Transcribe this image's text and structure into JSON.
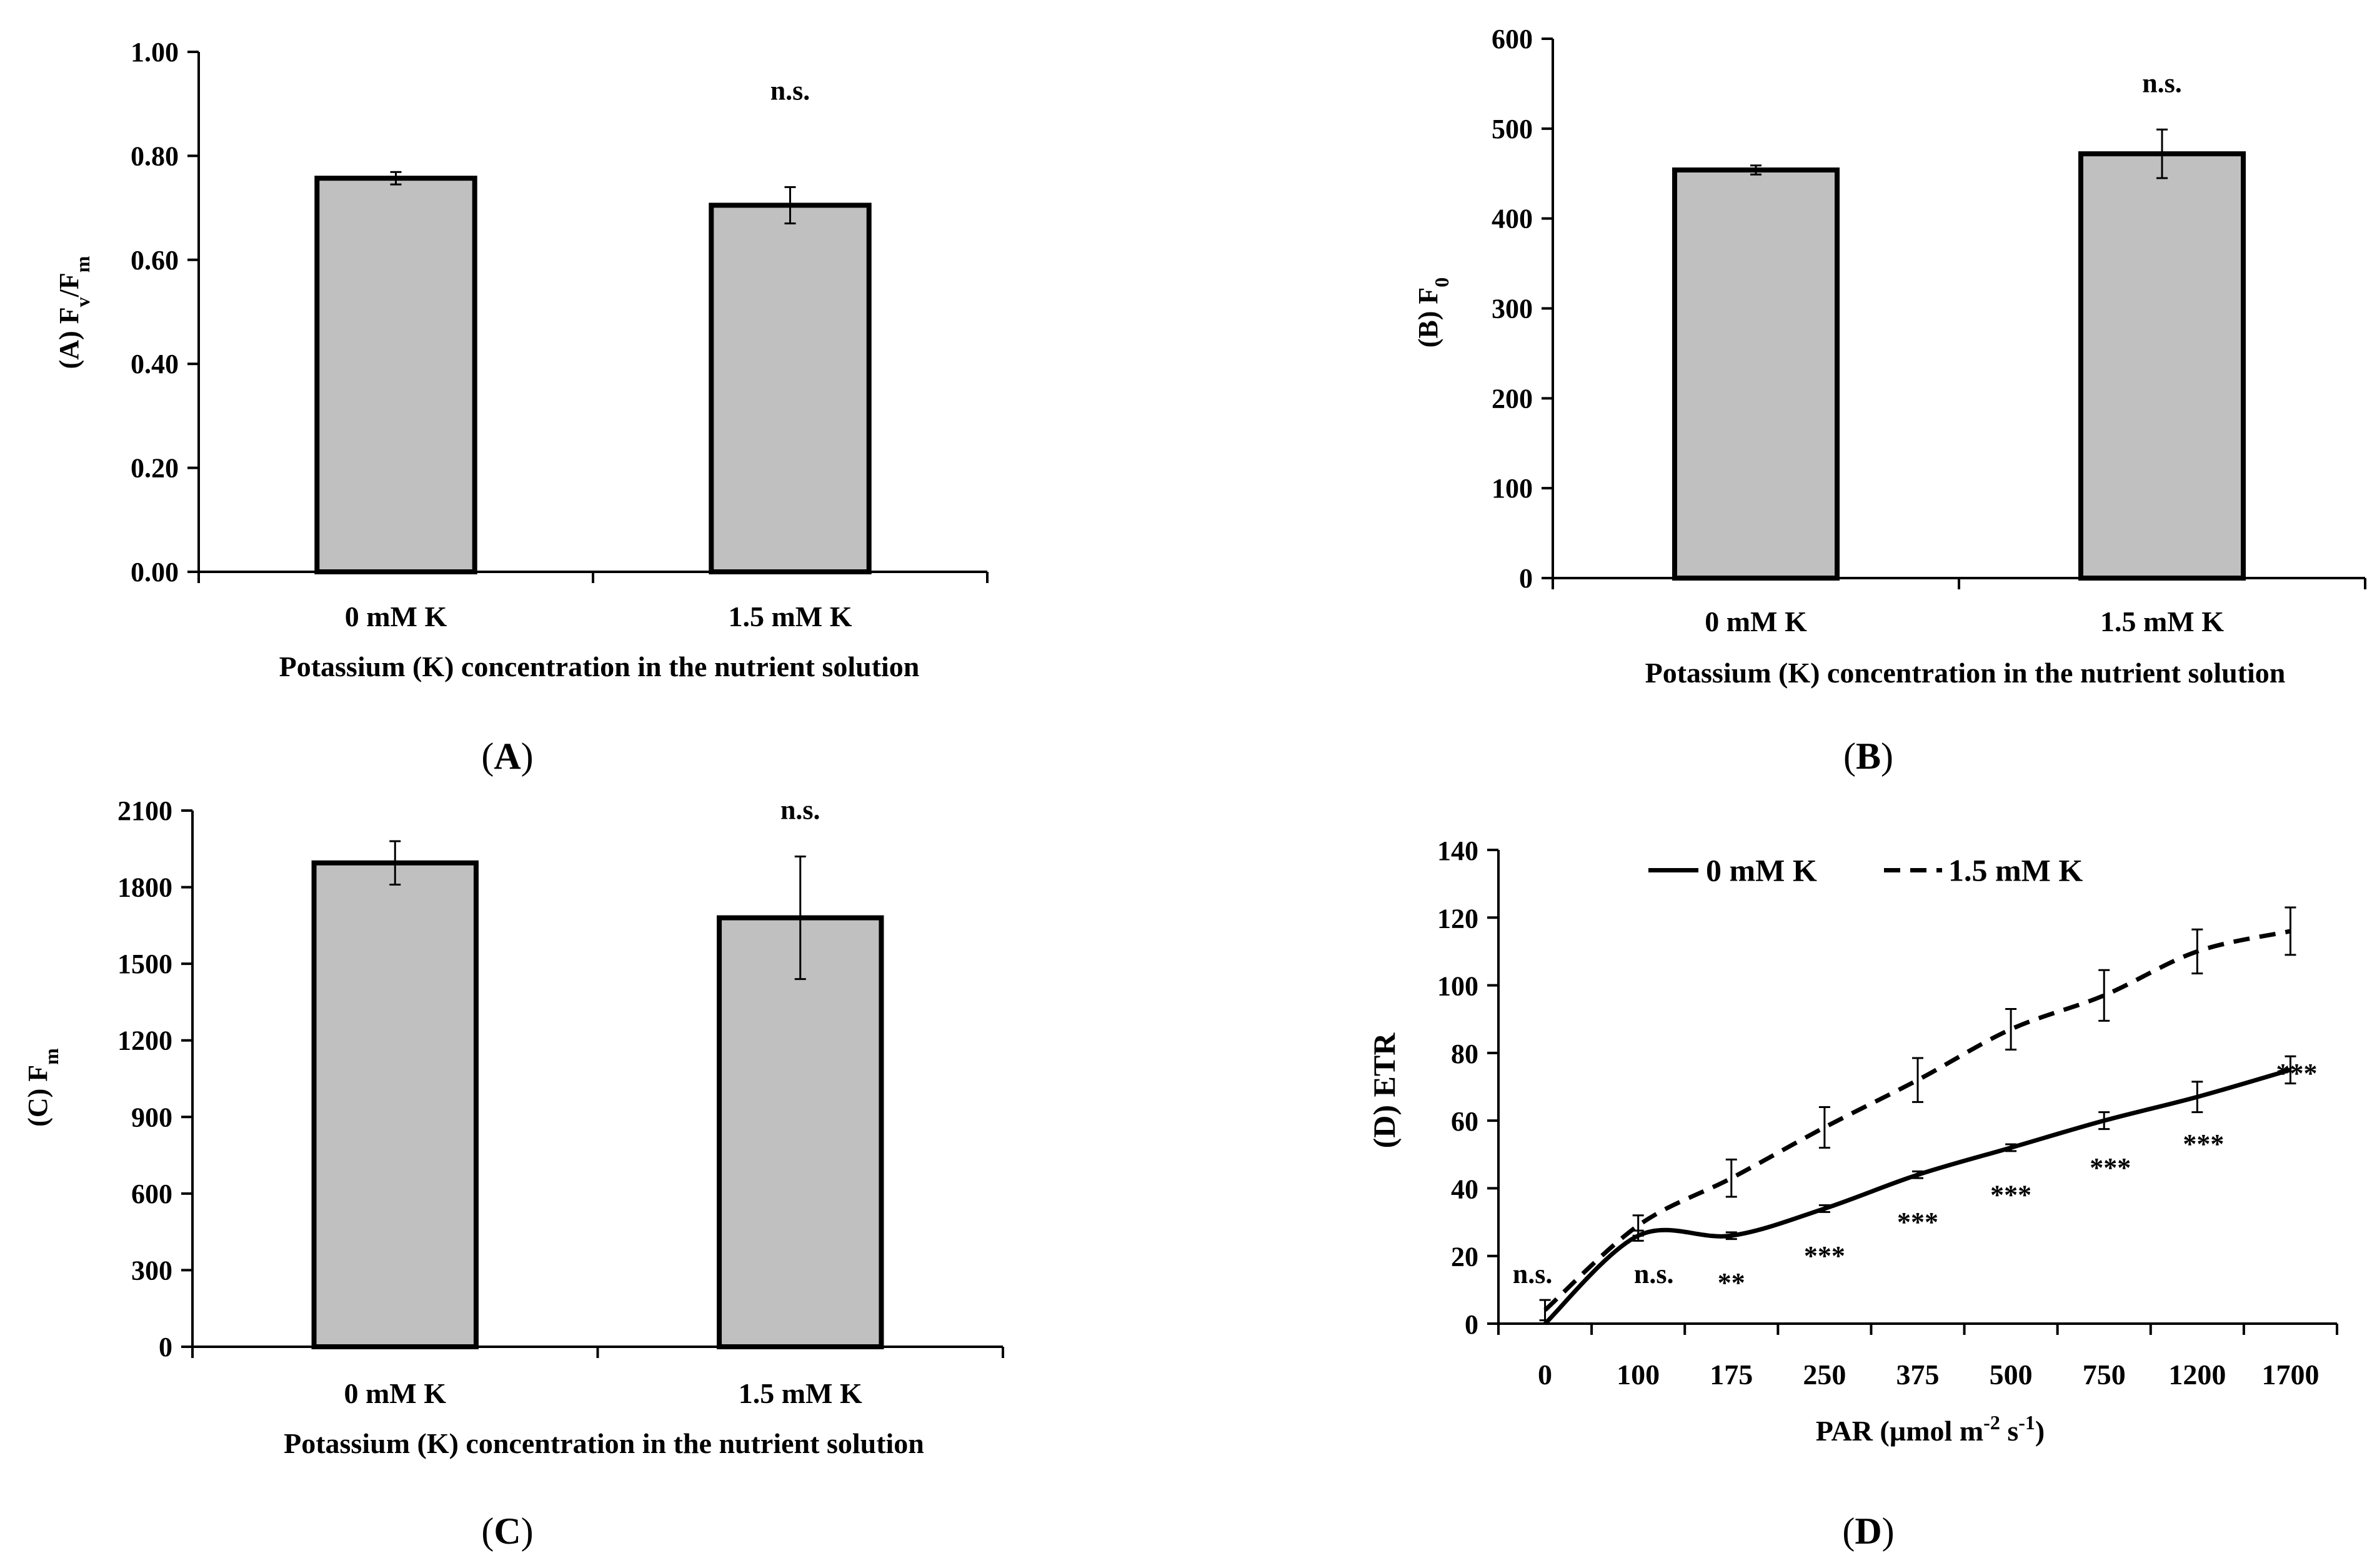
{
  "figure": {
    "x_title": "Potassium (K) concentration in the nutrient solution"
  },
  "chart_data": [
    {
      "id": "A",
      "type": "bar",
      "panel_label": "(A)",
      "panel_letter": "A",
      "ylabel_prefix": "(A) F",
      "ylabel_sub1": "v",
      "ylabel_mid": "/F",
      "ylabel_sub2": "m",
      "xlabel": "Potassium (K) concentration in the nutrient solution",
      "categories": [
        "0 mM K",
        "1.5 mM K"
      ],
      "values": [
        0.757,
        0.705
      ],
      "errors": [
        0.012,
        0.035
      ],
      "ylim": [
        0,
        1
      ],
      "yticks": [
        0,
        0.2,
        0.4,
        0.6,
        0.8,
        1.0
      ],
      "ytick_labels": [
        "0.00",
        "0.20",
        "0.40",
        "0.60",
        "0.80",
        "1.00"
      ],
      "annotation": "n.s.",
      "bar_color": "#c0c0c0"
    },
    {
      "id": "B",
      "type": "bar",
      "panel_label": "(B)",
      "panel_letter": "B",
      "ylabel_prefix": "(B)  F",
      "ylabel_sub1": "0",
      "xlabel": "Potassium (K) concentration in the nutrient solution",
      "categories": [
        "0 mM K",
        "1.5 mM K"
      ],
      "values": [
        454,
        472
      ],
      "errors": [
        5,
        27
      ],
      "ylim": [
        0,
        600
      ],
      "yticks": [
        0,
        100,
        200,
        300,
        400,
        500,
        600
      ],
      "ytick_labels": [
        "0",
        "100",
        "200",
        "300",
        "400",
        "500",
        "600"
      ],
      "annotation": "n.s.",
      "bar_color": "#c0c0c0"
    },
    {
      "id": "C",
      "type": "bar",
      "panel_label": "(C)",
      "panel_letter": "C",
      "ylabel_prefix": "(C) F",
      "ylabel_sub1": "m",
      "xlabel": "Potassium (K) concentration in the nutrient solution",
      "categories": [
        "0 mM K",
        "1.5 mM K"
      ],
      "values": [
        1895,
        1680
      ],
      "errors": [
        85,
        240
      ],
      "ylim": [
        0,
        2100
      ],
      "yticks": [
        0,
        300,
        600,
        900,
        1200,
        1500,
        1800,
        2100
      ],
      "ytick_labels": [
        "0",
        "300",
        "600",
        "900",
        "1200",
        "1500",
        "1800",
        "2100"
      ],
      "annotation": "n.s.",
      "bar_color": "#c0c0c0"
    },
    {
      "id": "D",
      "type": "line",
      "panel_label": "(D)",
      "panel_letter": "D",
      "ylabel": "(D) ETR",
      "xlabel_prefix": "PAR (µmol m",
      "xlabel_sup1": "-2",
      "xlabel_mid": " s",
      "xlabel_sup2": "-1",
      "xlabel_suffix": ")",
      "categories": [
        "0",
        "100",
        "175",
        "250",
        "375",
        "500",
        "750",
        "1200",
        "1700"
      ],
      "series": [
        {
          "name": "0 mM K",
          "style": "solid",
          "values": [
            0,
            26,
            26,
            34,
            44,
            52,
            60,
            67,
            75
          ],
          "errors": [
            0,
            1.5,
            1,
            1,
            1,
            1,
            2.5,
            4.5,
            4
          ]
        },
        {
          "name": "1.5 mM K",
          "style": "dashed",
          "values": [
            4,
            29,
            43,
            58,
            72,
            87,
            97,
            110,
            116
          ],
          "errors": [
            3,
            3,
            5.5,
            6,
            6.5,
            6,
            7.5,
            6.5,
            7
          ]
        }
      ],
      "significance": [
        "n.s.",
        "n.s.",
        "**",
        "***",
        "***",
        "***",
        "***",
        "***",
        "***"
      ],
      "ylim": [
        0,
        140
      ],
      "yticks": [
        0,
        20,
        40,
        60,
        80,
        100,
        120,
        140
      ],
      "ytick_labels": [
        "0",
        "20",
        "40",
        "60",
        "80",
        "100",
        "120",
        "140"
      ]
    }
  ]
}
